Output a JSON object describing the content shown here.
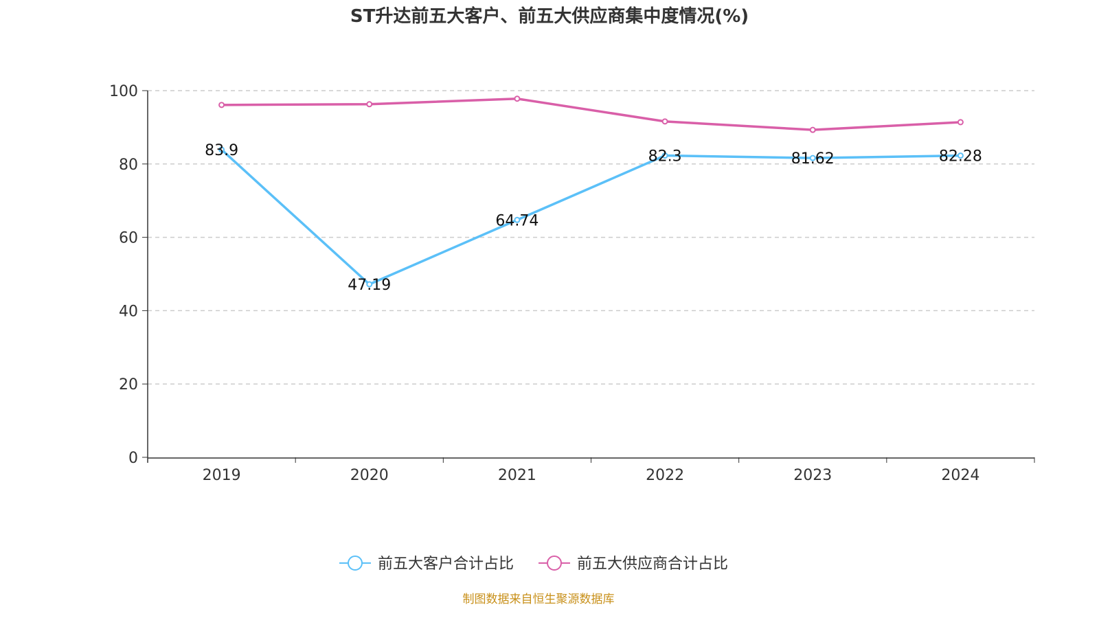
{
  "chart_data": {
    "type": "line",
    "title": "ST升达前五大客户、前五大供应商集中度情况(%)",
    "categories": [
      "2019",
      "2020",
      "2021",
      "2022",
      "2023",
      "2024"
    ],
    "ylim": [
      0,
      100
    ],
    "yticks": [
      0,
      20,
      40,
      60,
      80,
      100
    ],
    "grid": true,
    "legend_position": "bottom",
    "series": [
      {
        "name": "前五大客户合计占比",
        "color": "#5bc0f8",
        "values": [
          83.9,
          47.19,
          64.74,
          82.3,
          81.62,
          82.28
        ],
        "labels": [
          "83.9",
          "47.19",
          "64.74",
          "82.3",
          "81.62",
          "82.28"
        ]
      },
      {
        "name": "前五大供应商合计占比",
        "color": "#d95fa8",
        "values": [
          96.1,
          96.3,
          97.8,
          91.6,
          89.3,
          91.4
        ]
      }
    ]
  },
  "footer": "制图数据来自恒生聚源数据库"
}
